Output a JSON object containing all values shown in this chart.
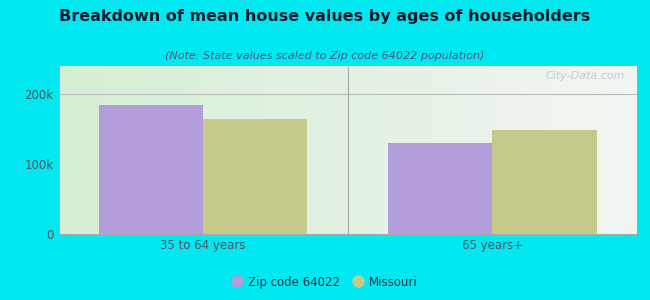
{
  "title": "Breakdown of mean house values by ages of householders",
  "subtitle": "(Note: State values scaled to Zip code 64022 population)",
  "categories": [
    "35 to 64 years",
    "65 years+"
  ],
  "zip_values": [
    185000,
    130000
  ],
  "state_values": [
    165000,
    148000
  ],
  "zip_color": "#b39ddb",
  "state_color": "#c5c98a",
  "zip_label": "Zip code 64022",
  "state_label": "Missouri",
  "ylim": [
    0,
    240000
  ],
  "ytick_vals": [
    0,
    100000,
    200000
  ],
  "ytick_labels": [
    "0",
    "100k",
    "200k"
  ],
  "background_outer": "#00e8f0",
  "bar_width": 0.18,
  "group_positions": [
    0.25,
    0.75
  ],
  "watermark": "City-Data.com"
}
